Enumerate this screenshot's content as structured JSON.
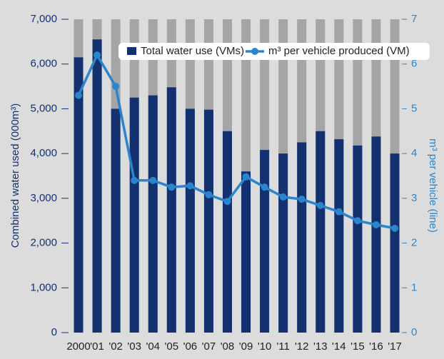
{
  "chart_data": {
    "type": "bar-line",
    "categories": [
      "2000",
      "'01",
      "'02",
      "'03",
      "'04",
      "'05",
      "'06",
      "'07",
      "'08",
      "'09",
      "'10",
      "'11",
      "'12",
      "'13",
      "'14",
      "'15",
      "'16",
      "'17"
    ],
    "series": [
      {
        "name": "Total water use (VMs)",
        "color": "#13306f",
        "values": [
          6150,
          6550,
          5000,
          5250,
          5300,
          5480,
          5000,
          4980,
          4500,
          3600,
          4080,
          4000,
          4250,
          4500,
          4320,
          4180,
          4380,
          4000
        ]
      },
      {
        "name": "m³ per vehicle produced (VM)",
        "color": "#2b85cc",
        "axis": "y2",
        "values": [
          5.3,
          6.2,
          5.5,
          3.4,
          3.4,
          3.25,
          3.28,
          3.08,
          2.93,
          3.48,
          3.25,
          3.03,
          2.98,
          2.84,
          2.7,
          2.5,
          2.41,
          2.33
        ]
      }
    ],
    "ylabel": "Combined water used (000m³)",
    "y2label": "m³ per vehicle (line)",
    "ylim": [
      0,
      7000
    ],
    "yticks": [
      0,
      {
        "value": 1000,
        "label": "1,000"
      },
      {
        "value": 2000,
        "label": "2,000"
      },
      {
        "value": 3000,
        "label": "3,000"
      },
      {
        "value": 4000,
        "label": "4,000"
      },
      {
        "value": 5000,
        "label": "5,000"
      },
      {
        "value": 6000,
        "label": "6,000"
      },
      {
        "value": 7000,
        "label": "7,000"
      }
    ],
    "y2lim": [
      0,
      7
    ],
    "y2ticks": [
      0,
      1,
      2,
      3,
      4,
      5,
      6,
      7
    ],
    "legend": "top"
  }
}
